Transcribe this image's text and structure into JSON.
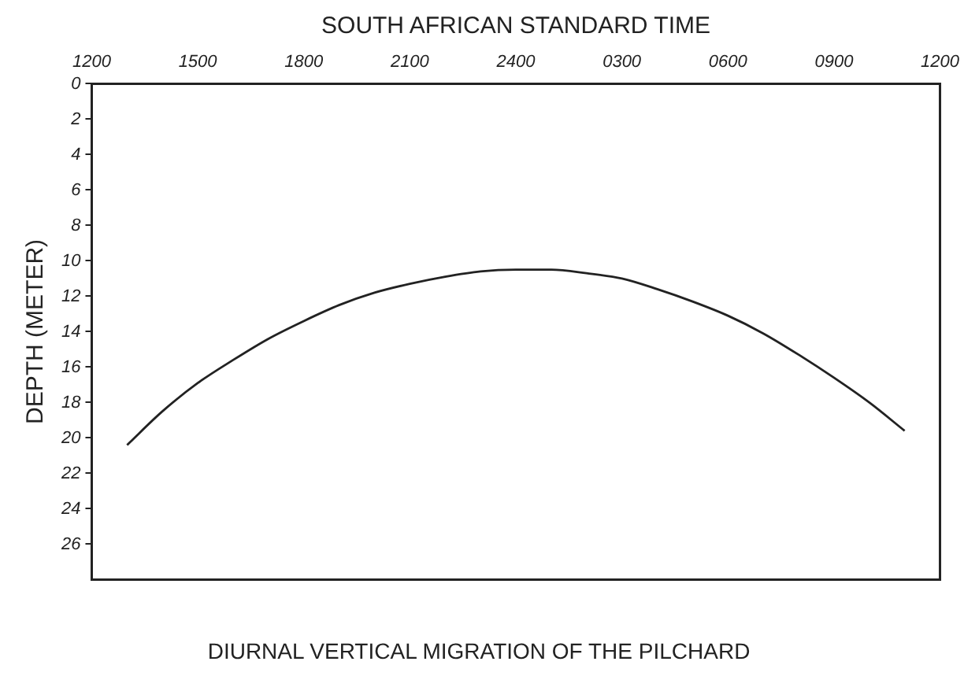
{
  "chart_data": {
    "type": "line",
    "title": "DIURNAL VERTICAL MIGRATION OF THE PILCHARD",
    "xlabel": "SOUTH AFRICAN STANDARD TIME",
    "ylabel": "DEPTH (METER)",
    "categories": [
      "1200",
      null,
      null,
      "1500",
      null,
      null,
      "1800",
      null,
      null,
      "2100",
      null,
      null,
      "2400",
      null,
      null,
      "0300",
      null,
      null,
      "0600",
      null,
      null,
      "0900",
      null,
      null,
      "1200"
    ],
    "series": [
      {
        "color": "#222222",
        "values": [
          null,
          20.4,
          18.5,
          16.9,
          15.6,
          14.4,
          13.4,
          12.5,
          11.8,
          11.3,
          10.9,
          10.6,
          10.5,
          10.5,
          10.7,
          11.0,
          11.6,
          12.3,
          13.1,
          14.1,
          15.3,
          16.6,
          18.0,
          19.6,
          null
        ]
      }
    ],
    "ylim": [
      28,
      0
    ],
    "yticks": [
      0,
      2,
      4,
      6,
      8,
      10,
      12,
      14,
      16,
      18,
      20,
      22,
      24,
      26
    ],
    "grid": false,
    "legend": false,
    "marker": "none",
    "line_style": "solid"
  }
}
